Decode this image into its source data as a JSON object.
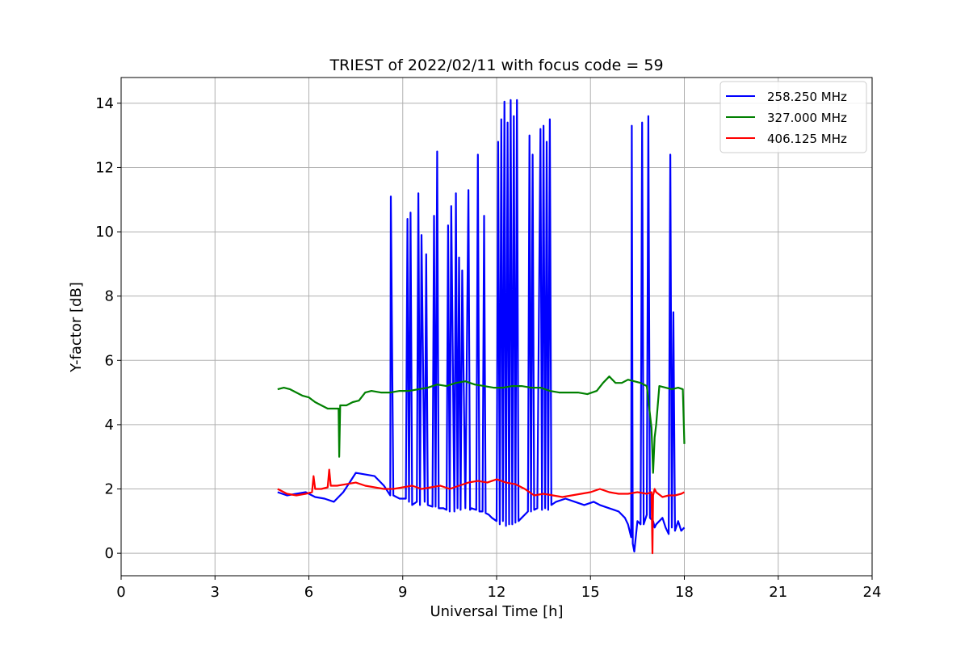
{
  "chart_data": {
    "type": "line",
    "title": "TRIEST of 2022/02/11 with focus code = 59",
    "xlabel": "Universal Time [h]",
    "ylabel": "Y-factor [dB]",
    "xlim": [
      0,
      24
    ],
    "ylim": [
      -0.7,
      14.8
    ],
    "xticks": [
      0,
      3,
      6,
      9,
      12,
      15,
      18,
      21,
      24
    ],
    "xtick_labels": [
      "0",
      "3",
      "6",
      "9",
      "12",
      "15",
      "18",
      "21",
      "24"
    ],
    "yticks": [
      0,
      2,
      4,
      6,
      8,
      10,
      12,
      14
    ],
    "ytick_labels": [
      "0",
      "2",
      "4",
      "6",
      "8",
      "10",
      "12",
      "14"
    ],
    "grid": true,
    "legend_position": "top-right",
    "series": [
      {
        "name": "258.250 MHz",
        "color": "#0000ff",
        "x": [
          5.0,
          5.3,
          5.6,
          5.9,
          6.2,
          6.5,
          6.8,
          7.1,
          7.3,
          7.5,
          7.8,
          8.1,
          8.4,
          8.6,
          8.62,
          8.65,
          8.7,
          8.9,
          9.1,
          9.15,
          9.2,
          9.25,
          9.3,
          9.45,
          9.5,
          9.55,
          9.6,
          9.7,
          9.75,
          9.8,
          9.95,
          10.0,
          10.05,
          10.1,
          10.15,
          10.3,
          10.4,
          10.45,
          10.5,
          10.55,
          10.65,
          10.7,
          10.75,
          10.8,
          10.85,
          10.9,
          11.0,
          11.1,
          11.15,
          11.2,
          11.35,
          11.4,
          11.45,
          11.55,
          11.6,
          11.65,
          11.75,
          11.85,
          12.0,
          12.05,
          12.1,
          12.15,
          12.2,
          12.25,
          12.3,
          12.35,
          12.4,
          12.45,
          12.5,
          12.55,
          12.6,
          12.65,
          12.7,
          12.8,
          12.9,
          13.0,
          13.05,
          13.1,
          13.15,
          13.2,
          13.3,
          13.4,
          13.45,
          13.5,
          13.55,
          13.6,
          13.65,
          13.7,
          13.75,
          13.9,
          14.2,
          14.5,
          14.8,
          15.1,
          15.3,
          15.6,
          15.9,
          16.1,
          16.2,
          16.3,
          16.32,
          16.35,
          16.4,
          16.5,
          16.6,
          16.65,
          16.7,
          16.8,
          16.85,
          16.9,
          17.0,
          17.05,
          17.1,
          17.2,
          17.3,
          17.4,
          17.5,
          17.55,
          17.6,
          17.65,
          17.7,
          17.8,
          17.9,
          18.0
        ],
        "y": [
          1.9,
          1.8,
          1.85,
          1.9,
          1.75,
          1.7,
          1.6,
          1.9,
          2.2,
          2.5,
          2.45,
          2.4,
          2.1,
          1.8,
          11.1,
          7.5,
          1.8,
          1.7,
          1.7,
          10.4,
          1.6,
          10.6,
          1.5,
          1.6,
          11.2,
          1.5,
          9.9,
          1.6,
          9.3,
          1.5,
          1.45,
          10.5,
          1.45,
          12.5,
          1.4,
          1.4,
          1.35,
          10.2,
          1.3,
          10.8,
          1.3,
          11.2,
          1.4,
          9.2,
          1.35,
          8.8,
          1.4,
          11.3,
          1.35,
          1.4,
          1.35,
          12.4,
          1.3,
          1.3,
          10.5,
          1.25,
          1.2,
          1.1,
          1.0,
          12.8,
          0.9,
          13.5,
          1.0,
          14.05,
          0.85,
          13.4,
          0.9,
          14.1,
          0.9,
          13.6,
          0.95,
          14.1,
          1.0,
          1.1,
          1.2,
          1.3,
          13.0,
          1.3,
          12.4,
          1.35,
          1.4,
          13.2,
          1.35,
          13.3,
          1.4,
          12.8,
          1.35,
          13.5,
          1.5,
          1.6,
          1.7,
          1.6,
          1.5,
          1.6,
          1.5,
          1.4,
          1.3,
          1.1,
          0.9,
          0.5,
          13.3,
          0.3,
          0.05,
          1.0,
          0.9,
          13.4,
          0.9,
          1.2,
          13.6,
          1.1,
          1.0,
          0.8,
          0.9,
          1.0,
          1.1,
          0.8,
          0.6,
          12.4,
          0.8,
          7.5,
          0.7,
          1.0,
          0.7,
          0.8
        ]
      },
      {
        "name": "327.000 MHz",
        "color": "#008000",
        "x": [
          5.0,
          5.2,
          5.4,
          5.6,
          5.8,
          6.0,
          6.2,
          6.4,
          6.6,
          6.8,
          6.95,
          6.97,
          7.0,
          7.2,
          7.4,
          7.6,
          7.8,
          8.0,
          8.3,
          8.6,
          8.9,
          9.2,
          9.5,
          9.8,
          10.1,
          10.4,
          10.7,
          11.0,
          11.3,
          11.6,
          11.9,
          12.2,
          12.5,
          12.8,
          13.1,
          13.4,
          13.7,
          14.0,
          14.3,
          14.6,
          14.9,
          15.2,
          15.4,
          15.6,
          15.8,
          16.0,
          16.2,
          16.4,
          16.6,
          16.8,
          16.95,
          17.0,
          17.05,
          17.1,
          17.2,
          17.4,
          17.6,
          17.8,
          17.95,
          18.0
        ],
        "y": [
          5.1,
          5.15,
          5.1,
          5.0,
          4.9,
          4.85,
          4.7,
          4.6,
          4.5,
          4.5,
          4.5,
          3.0,
          4.6,
          4.6,
          4.7,
          4.75,
          5.0,
          5.05,
          5.0,
          5.0,
          5.05,
          5.05,
          5.1,
          5.15,
          5.25,
          5.2,
          5.3,
          5.35,
          5.25,
          5.2,
          5.15,
          5.15,
          5.2,
          5.2,
          5.15,
          5.15,
          5.05,
          5.0,
          5.0,
          5.0,
          4.95,
          5.05,
          5.3,
          5.5,
          5.3,
          5.3,
          5.4,
          5.35,
          5.3,
          5.2,
          3.9,
          2.5,
          3.6,
          4.0,
          5.2,
          5.15,
          5.1,
          5.15,
          5.1,
          3.4
        ]
      },
      {
        "name": "406.125 MHz",
        "color": "#ff0000",
        "x": [
          5.0,
          5.3,
          5.6,
          5.9,
          6.1,
          6.15,
          6.2,
          6.4,
          6.6,
          6.65,
          6.7,
          6.9,
          7.2,
          7.5,
          7.8,
          8.1,
          8.4,
          8.7,
          9.0,
          9.3,
          9.6,
          9.9,
          10.2,
          10.5,
          10.8,
          11.1,
          11.4,
          11.7,
          12.0,
          12.3,
          12.6,
          12.9,
          13.2,
          13.5,
          13.8,
          14.1,
          14.4,
          14.7,
          15.0,
          15.3,
          15.6,
          15.9,
          16.2,
          16.5,
          16.8,
          16.95,
          16.98,
          17.0,
          17.05,
          17.1,
          17.3,
          17.5,
          17.7,
          17.9,
          18.0
        ],
        "y": [
          2.0,
          1.85,
          1.8,
          1.85,
          1.9,
          2.4,
          2.0,
          2.0,
          2.05,
          2.6,
          2.1,
          2.1,
          2.15,
          2.2,
          2.1,
          2.05,
          2.0,
          2.0,
          2.05,
          2.1,
          2.0,
          2.05,
          2.1,
          2.0,
          2.1,
          2.2,
          2.25,
          2.2,
          2.3,
          2.2,
          2.15,
          2.0,
          1.8,
          1.85,
          1.8,
          1.75,
          1.8,
          1.85,
          1.9,
          2.0,
          1.9,
          1.85,
          1.85,
          1.9,
          1.85,
          1.9,
          0.0,
          1.8,
          2.0,
          1.9,
          1.75,
          1.8,
          1.8,
          1.85,
          1.9
        ]
      }
    ]
  }
}
